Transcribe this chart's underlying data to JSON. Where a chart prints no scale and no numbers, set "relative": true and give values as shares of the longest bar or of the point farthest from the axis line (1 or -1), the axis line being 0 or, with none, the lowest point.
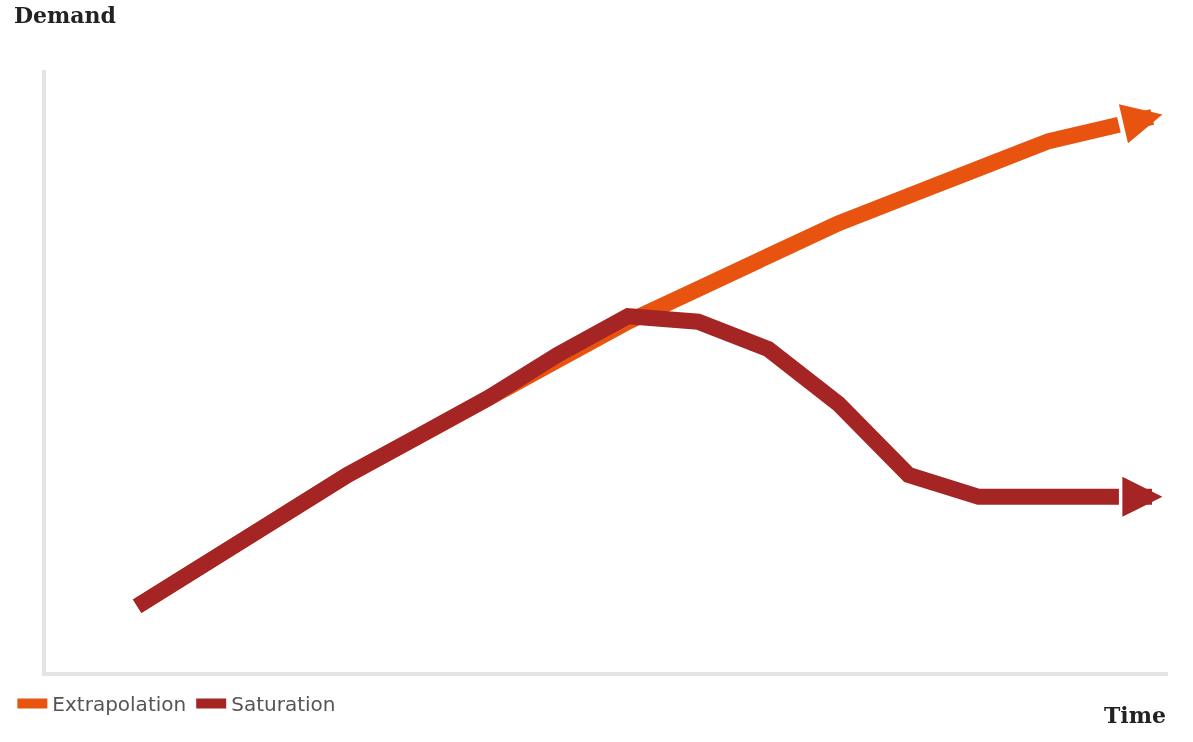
{
  "chart_data": {
    "type": "line",
    "relative": true,
    "xlabel": "Time",
    "ylabel": "Demand",
    "categories": [
      null,
      null,
      null,
      null,
      null,
      null,
      null,
      null,
      null,
      null,
      null,
      null,
      null,
      null,
      null
    ],
    "series": [
      {
        "name": "Extrapolation",
        "color": "#e8540f",
        "values": [
          0.12,
          0.2,
          0.28,
          0.36,
          0.43,
          0.5,
          0.57,
          0.64,
          0.7,
          0.76,
          0.82,
          0.87,
          0.92,
          0.97,
          1.0
        ]
      },
      {
        "name": "Saturation",
        "color": "#a52424",
        "values": [
          0.12,
          0.2,
          0.28,
          0.36,
          0.43,
          0.5,
          0.58,
          0.65,
          0.64,
          0.59,
          0.49,
          0.36,
          0.32,
          0.32,
          0.32
        ]
      }
    ],
    "legend": "bottom left",
    "marker": "none",
    "line_style": "solid"
  }
}
